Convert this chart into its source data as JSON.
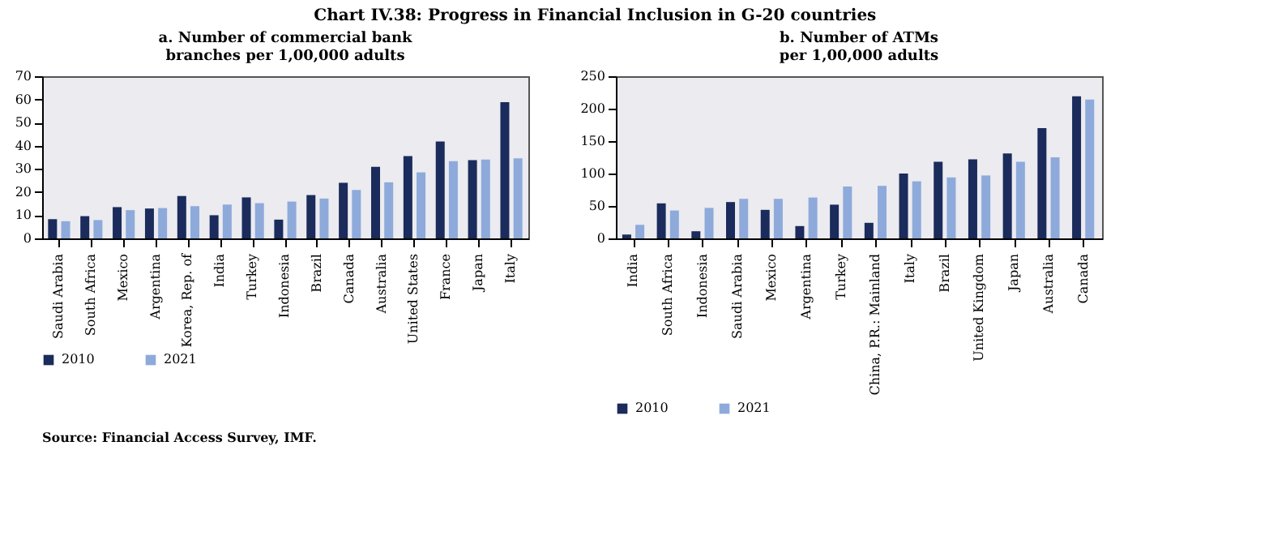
{
  "chart_data": [
    {
      "type": "bar",
      "title": "a. Number of commercial bank branches per 1,00,000 adults",
      "categories": [
        "Saudi Arabia",
        "South Africa",
        "Mexico",
        "Argentina",
        "Korea, Rep. of",
        "India",
        "Turkey",
        "Indonesia",
        "Brazil",
        "Canada",
        "Australia",
        "United States",
        "France",
        "Japan",
        "Italy"
      ],
      "series": [
        {
          "name": "2010",
          "color": "#1a2b5c",
          "values": [
            8.3,
            9.6,
            13.5,
            12.9,
            18.3,
            10,
            17.7,
            8.1,
            18.7,
            24,
            30.9,
            35.5,
            41.8,
            33.8,
            58.8
          ]
        },
        {
          "name": "2021",
          "color": "#8eaadb",
          "values": [
            7.4,
            7.9,
            12.2,
            13.1,
            13.9,
            14.6,
            15.2,
            15.9,
            17.2,
            20.9,
            24.2,
            28.5,
            33.3,
            34,
            34.6
          ]
        }
      ],
      "ylim": [
        0,
        70
      ],
      "yticks": [
        0,
        10,
        20,
        30,
        40,
        50,
        60,
        70
      ],
      "grid": false,
      "legend": "bottom",
      "annotations": [
        "Chart IV.38: Progress in Financial Inclusion in G-20 countries"
      ]
    },
    {
      "type": "bar",
      "title": "b. Number of ATMs per 1,00,000 adults",
      "categories": [
        "India",
        "South Africa",
        "Indonesia",
        "Saudi Arabia",
        "Mexico",
        "Argentina",
        "Turkey",
        "China, P.R.: Mainland",
        "Italy",
        "Brazil",
        "United Kingdom",
        "Japan",
        "Australia",
        "Canada"
      ],
      "series": [
        {
          "name": "2010",
          "color": "#1a2b5c",
          "values": [
            6,
            54,
            11,
            56,
            44,
            19,
            52,
            24,
            100,
            118,
            122,
            131,
            170,
            219
          ]
        },
        {
          "name": "2021",
          "color": "#8eaadb",
          "values": [
            21,
            43,
            47,
            61,
            61,
            63,
            80,
            81,
            88,
            94,
            97,
            118,
            125,
            214
          ]
        }
      ],
      "ylim": [
        0,
        250
      ],
      "yticks": [
        0,
        50,
        100,
        150,
        200,
        250
      ],
      "grid": false,
      "legend": "bottom",
      "annotations": [
        "Source: Financial Access Survey, IMF."
      ]
    }
  ]
}
